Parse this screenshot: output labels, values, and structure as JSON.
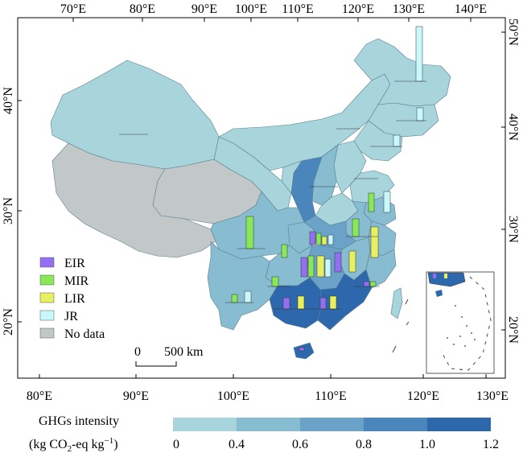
{
  "top_ticks": [
    "70°E",
    "80°E",
    "90°E",
    "100°E",
    "110°E",
    "120°E",
    "130°E",
    "140°E"
  ],
  "bottom_ticks": [
    "80°E",
    "90°E",
    "100°E",
    "110°E",
    "120°E",
    "130°E"
  ],
  "left_ticks": [
    "40°N",
    "30°N",
    "20°N"
  ],
  "right_ticks": [
    "50°N",
    "40°N",
    "30°N",
    "20°N"
  ],
  "legend": [
    {
      "label": "EIR",
      "color": "#9370f0"
    },
    {
      "label": "MIR",
      "color": "#88e858"
    },
    {
      "label": "LIR",
      "color": "#e6f060"
    },
    {
      "label": "JR",
      "color": "#c8f8fc"
    },
    {
      "label": "No data",
      "color": "#c2c8c8"
    }
  ],
  "scale_bar": {
    "start": "0",
    "end": "500 km"
  },
  "colorbar": {
    "title_line1": "GHGs intensity",
    "title_line2_prefix": "(kg CO",
    "title_line2_sub": "2",
    "title_line2_mid": "-eq kg",
    "title_line2_sup": "−1",
    "title_line2_suffix": ")",
    "tick_labels": [
      "0",
      "0.4",
      "0.6",
      "0.8",
      "1.0",
      "1.2"
    ],
    "colors": [
      "#a8d4dc",
      "#88bcd0",
      "#6aa2c8",
      "#4a86bc",
      "#2e68ac"
    ]
  }
}
